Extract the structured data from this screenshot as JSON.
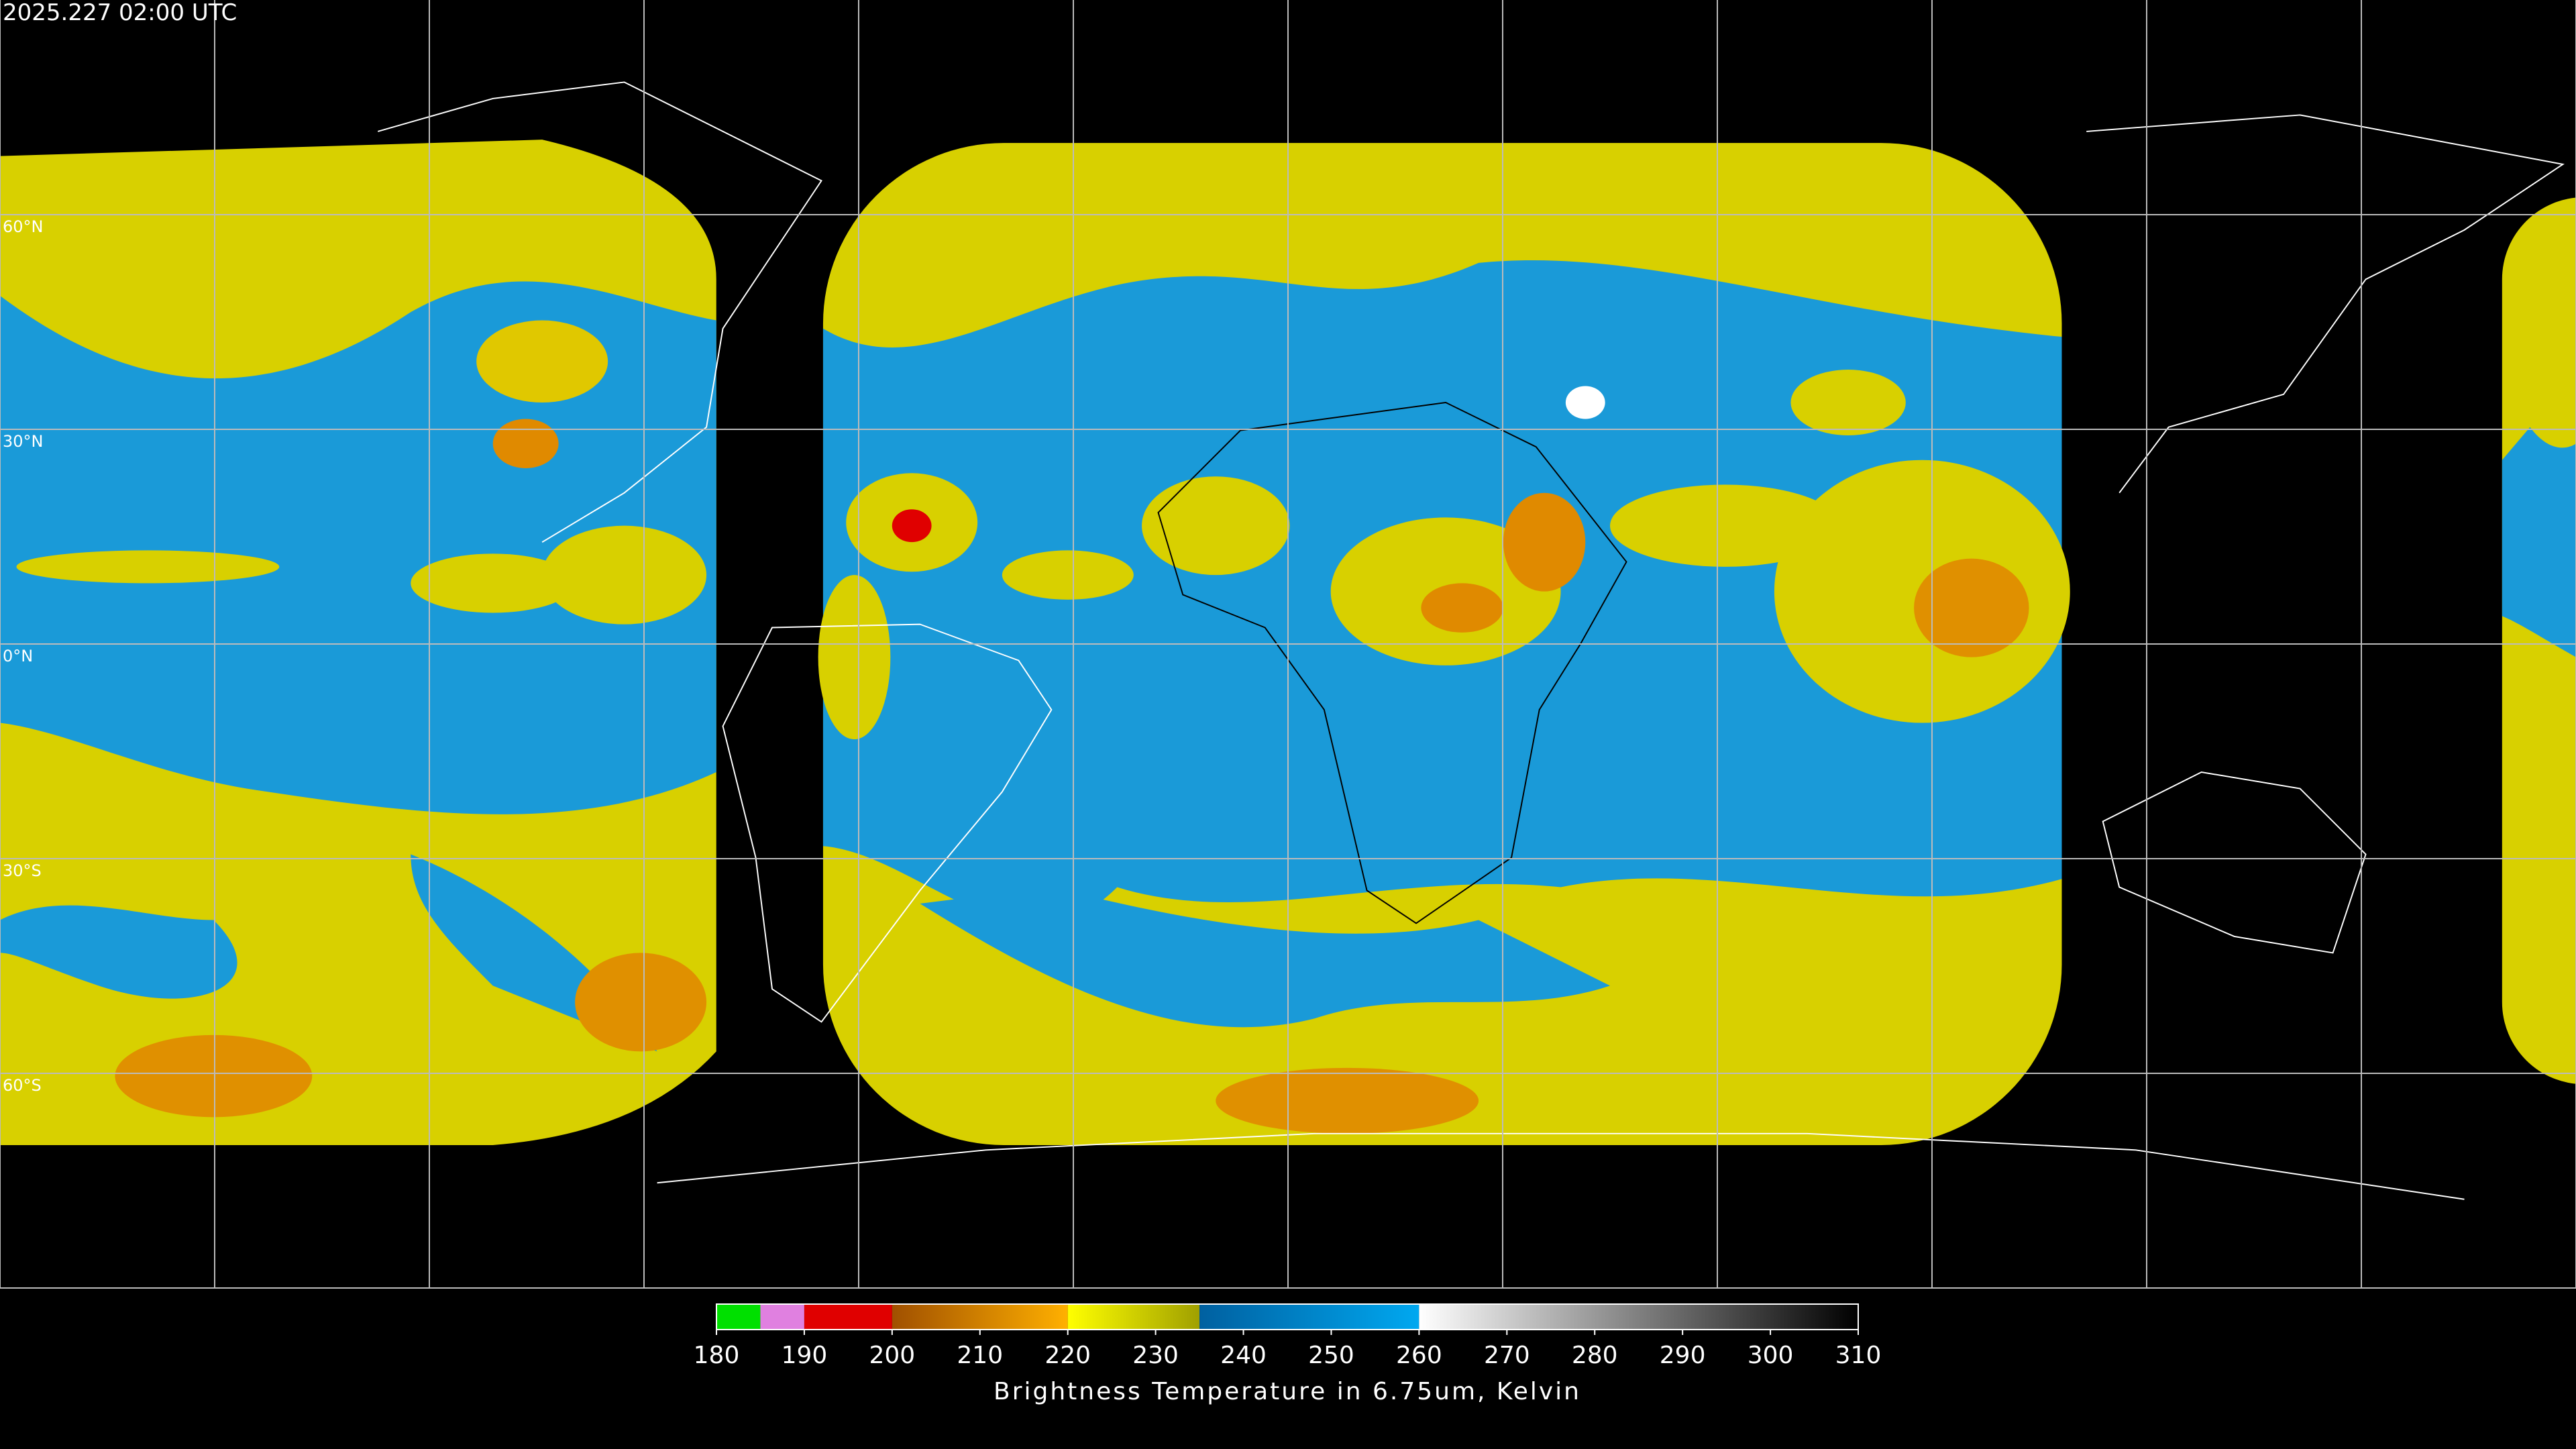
{
  "header": {
    "title": "2025.227 02:00 UTC"
  },
  "map": {
    "lat_labels": [
      "60°N",
      "30°N",
      "0°N",
      "30°S",
      "60°S"
    ]
  },
  "colorbar": {
    "min": 180,
    "max": 310,
    "ticks": [
      180,
      190,
      200,
      210,
      220,
      230,
      240,
      250,
      260,
      270,
      280,
      290,
      300,
      310
    ],
    "label": "Brightness Temperature in 6.75um, Kelvin",
    "segments": [
      {
        "from": 180,
        "to": 185,
        "colors": [
          "#00e000",
          "#00e000"
        ]
      },
      {
        "from": 185,
        "to": 190,
        "colors": [
          "#e080e0",
          "#e080e0"
        ]
      },
      {
        "from": 190,
        "to": 200,
        "colors": [
          "#e00000",
          "#e00000"
        ]
      },
      {
        "from": 200,
        "to": 220,
        "colors": [
          "#a05000",
          "#ffb000"
        ]
      },
      {
        "from": 220,
        "to": 235,
        "colors": [
          "#ffff00",
          "#a0a000"
        ]
      },
      {
        "from": 235,
        "to": 260,
        "colors": [
          "#0060a0",
          "#00a8f0"
        ]
      },
      {
        "from": 260,
        "to": 310,
        "colors": [
          "#ffffff",
          "#000000"
        ]
      }
    ]
  }
}
